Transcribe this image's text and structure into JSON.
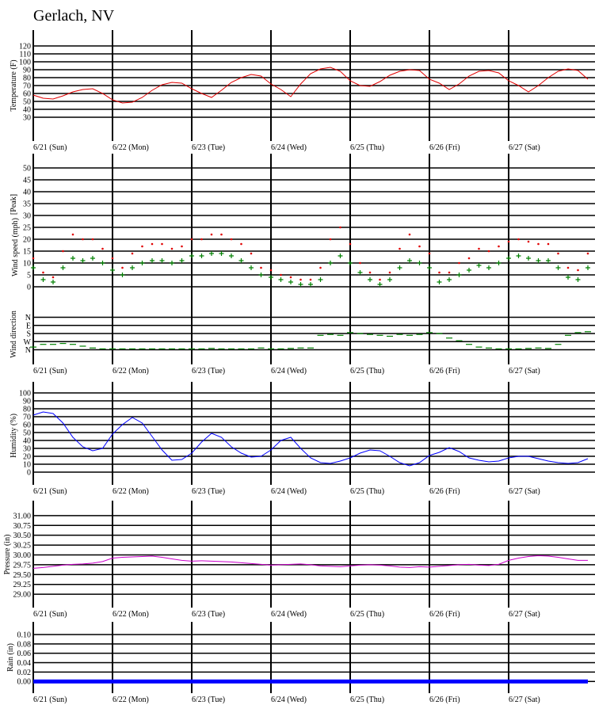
{
  "title": "Gerlach, NV",
  "chart_data": [
    {
      "type": "line",
      "y_label": "Temperature (F)",
      "color": "#e00000",
      "xlim": [
        0,
        168
      ],
      "ylim": [
        0,
        140
      ],
      "yticks": [
        30,
        40,
        50,
        60,
        70,
        80,
        90,
        100,
        110,
        120
      ],
      "xticks": [
        {
          "value": 0,
          "label": "6/21 (Sun)"
        },
        {
          "value": 24,
          "label": "6/22 (Mon)"
        },
        {
          "value": 48,
          "label": "6/23 (Tue)"
        },
        {
          "value": 72,
          "label": "6/24 (Wed)"
        },
        {
          "value": 96,
          "label": "6/25 (Thu)"
        },
        {
          "value": 120,
          "label": "6/26 (Fri)"
        },
        {
          "value": 144,
          "label": "6/27 (Sat)"
        }
      ],
      "x": [
        0,
        3,
        6,
        9,
        12,
        15,
        18,
        21,
        24,
        27,
        30,
        33,
        36,
        39,
        42,
        45,
        48,
        51,
        54,
        57,
        60,
        63,
        66,
        69,
        72,
        75,
        78,
        81,
        84,
        87,
        90,
        93,
        96,
        99,
        102,
        105,
        108,
        111,
        114,
        117,
        120,
        123,
        126,
        129,
        132,
        135,
        138,
        141,
        144,
        147,
        150,
        153,
        156,
        159,
        162,
        165,
        168
      ],
      "values": [
        58,
        54,
        53,
        57,
        62,
        65,
        66,
        60,
        52,
        48,
        49,
        55,
        64,
        71,
        74,
        73,
        66,
        60,
        55,
        64,
        74,
        80,
        84,
        82,
        72,
        65,
        56,
        72,
        85,
        91,
        93,
        88,
        76,
        70,
        69,
        75,
        83,
        88,
        90,
        89,
        78,
        73,
        65,
        72,
        82,
        88,
        89,
        86,
        76,
        70,
        62,
        70,
        80,
        88,
        91,
        89,
        78
      ]
    },
    {
      "type": "scatter",
      "y_label": "Wind speed (mph)",
      "xlim": [
        0,
        168
      ],
      "ylim": [
        -6,
        56
      ],
      "yticks": [
        0,
        5,
        10,
        15,
        20,
        25,
        30,
        35,
        40,
        45,
        50
      ],
      "x": [
        0,
        3,
        6,
        9,
        12,
        15,
        18,
        21,
        24,
        27,
        30,
        33,
        36,
        39,
        42,
        45,
        48,
        51,
        54,
        57,
        60,
        63,
        66,
        69,
        72,
        75,
        78,
        81,
        84,
        87,
        90,
        93,
        96,
        99,
        102,
        105,
        108,
        111,
        114,
        117,
        120,
        123,
        126,
        129,
        132,
        135,
        138,
        141,
        144,
        147,
        150,
        153,
        156,
        159,
        162,
        165,
        168
      ],
      "series": [
        {
          "name": "[Peak]",
          "color": "#e00000",
          "values": [
            12,
            6,
            4,
            15,
            22,
            20,
            20,
            16,
            12,
            8,
            14,
            17,
            18,
            18,
            16,
            17,
            20,
            20,
            22,
            22,
            20,
            18,
            14,
            8,
            7,
            5,
            4,
            3,
            3,
            8,
            20,
            25,
            18,
            10,
            6,
            3,
            6,
            16,
            22,
            17,
            14,
            6,
            6,
            10,
            12,
            16,
            15,
            17,
            19,
            20,
            19,
            18,
            18,
            14,
            8,
            7,
            14
          ]
        },
        {
          "color": "#008000",
          "values": [
            8,
            3,
            2,
            8,
            12,
            11,
            12,
            10,
            7,
            5,
            8,
            10,
            11,
            11,
            10,
            11,
            13,
            13,
            14,
            14,
            13,
            11,
            8,
            5,
            4,
            3,
            2,
            1,
            1,
            3,
            10,
            13,
            10,
            6,
            3,
            1,
            3,
            8,
            11,
            10,
            8,
            2,
            3,
            5,
            7,
            9,
            8,
            10,
            12,
            13,
            12,
            11,
            11,
            8,
            4,
            3,
            8
          ]
        }
      ]
    },
    {
      "type": "scatter",
      "y_label": "Wind direction",
      "color": "#008000",
      "xlim": [
        0,
        168
      ],
      "ylim": [
        522,
        -180
      ],
      "yticks": [
        {
          "value": 0,
          "label": "N"
        },
        {
          "value": 90,
          "label": "E"
        },
        {
          "value": 180,
          "label": "S"
        },
        {
          "value": 270,
          "label": "W"
        },
        {
          "value": 360,
          "label": "N"
        }
      ],
      "xticks": [
        {
          "value": 0,
          "label": "6/21 (Sun)"
        },
        {
          "value": 24,
          "label": "6/22 (Mon)"
        },
        {
          "value": 48,
          "label": "6/23 (Tue)"
        },
        {
          "value": 72,
          "label": "6/24 (Wed)"
        },
        {
          "value": 96,
          "label": "6/25 (Thu)"
        },
        {
          "value": 120,
          "label": "6/26 (Fri)"
        },
        {
          "value": 144,
          "label": "6/27 (Sat)"
        }
      ],
      "x": [
        0,
        3,
        6,
        9,
        12,
        15,
        18,
        21,
        24,
        27,
        30,
        33,
        36,
        39,
        42,
        45,
        48,
        51,
        54,
        57,
        60,
        63,
        66,
        69,
        72,
        75,
        78,
        81,
        84,
        87,
        90,
        93,
        96,
        99,
        102,
        105,
        108,
        111,
        114,
        117,
        120,
        123,
        126,
        129,
        132,
        135,
        138,
        141,
        144,
        147,
        150,
        153,
        156,
        159,
        162,
        165,
        168
      ],
      "values": [
        330,
        300,
        300,
        290,
        300,
        320,
        340,
        350,
        350,
        350,
        350,
        350,
        350,
        350,
        350,
        350,
        350,
        350,
        345,
        350,
        350,
        350,
        350,
        340,
        350,
        350,
        345,
        340,
        340,
        200,
        190,
        200,
        170,
        180,
        190,
        200,
        210,
        190,
        200,
        190,
        170,
        180,
        230,
        260,
        300,
        330,
        340,
        350,
        350,
        350,
        345,
        340,
        345,
        300,
        200,
        170,
        160
      ]
    },
    {
      "type": "line",
      "y_label": "Humidity (%)",
      "color": "#0000ff",
      "xlim": [
        0,
        168
      ],
      "ylim": [
        -16,
        114
      ],
      "yticks": [
        0,
        10,
        20,
        30,
        40,
        50,
        60,
        70,
        80,
        90,
        100
      ],
      "xticks": [
        {
          "value": 0,
          "label": "6/21 (Sun)"
        },
        {
          "value": 24,
          "label": "6/22 (Mon)"
        },
        {
          "value": 48,
          "label": "6/23 (Tue)"
        },
        {
          "value": 72,
          "label": "6/24 (Wed)"
        },
        {
          "value": 96,
          "label": "6/25 (Thu)"
        },
        {
          "value": 120,
          "label": "6/26 (Fri)"
        },
        {
          "value": 144,
          "label": "6/27 (Sat)"
        }
      ],
      "x": [
        0,
        3,
        6,
        9,
        12,
        15,
        18,
        21,
        24,
        27,
        30,
        33,
        36,
        39,
        42,
        45,
        48,
        51,
        54,
        57,
        60,
        63,
        66,
        69,
        72,
        75,
        78,
        81,
        84,
        87,
        90,
        93,
        96,
        99,
        102,
        105,
        108,
        111,
        114,
        117,
        120,
        123,
        126,
        129,
        132,
        135,
        138,
        141,
        144,
        147,
        150,
        153,
        156,
        159,
        162,
        165,
        168
      ],
      "values": [
        72,
        76,
        74,
        62,
        44,
        32,
        27,
        30,
        48,
        60,
        69,
        62,
        45,
        28,
        15,
        16,
        24,
        38,
        49,
        44,
        32,
        24,
        19,
        20,
        28,
        40,
        44,
        30,
        18,
        12,
        11,
        14,
        18,
        24,
        28,
        27,
        20,
        12,
        8,
        12,
        21,
        25,
        31,
        26,
        18,
        15,
        13,
        14,
        18,
        20,
        20,
        17,
        14,
        12,
        11,
        12,
        17
      ]
    },
    {
      "type": "line",
      "y_label": "Pressure (in)",
      "color": "#cc00cc",
      "xlim": [
        0,
        168
      ],
      "ylim": [
        28.66,
        31.38
      ],
      "yticks": [
        {
          "value": 29,
          "label": "29.00"
        },
        {
          "value": 29.25,
          "label": "29.25"
        },
        {
          "value": 29.5,
          "label": "29.50"
        },
        {
          "value": 29.75,
          "label": "29.75"
        },
        {
          "value": 30,
          "label": "30.00"
        },
        {
          "value": 30.25,
          "label": "30.25"
        },
        {
          "value": 30.5,
          "label": "30.50"
        },
        {
          "value": 30.75,
          "label": "30.75"
        },
        {
          "value": 31,
          "label": "31.00"
        }
      ],
      "xticks": [
        {
          "value": 0,
          "label": "6/21 (Sun)"
        },
        {
          "value": 24,
          "label": "6/22 (Mon)"
        },
        {
          "value": 48,
          "label": "6/23 (Tue)"
        },
        {
          "value": 72,
          "label": "6/24 (Wed)"
        },
        {
          "value": 96,
          "label": "6/25 (Thu)"
        },
        {
          "value": 120,
          "label": "6/26 (Fri)"
        },
        {
          "value": 144,
          "label": "6/27 (Sat)"
        }
      ],
      "x": [
        0,
        3,
        6,
        9,
        12,
        15,
        18,
        21,
        24,
        27,
        30,
        33,
        36,
        39,
        42,
        45,
        48,
        51,
        54,
        57,
        60,
        63,
        66,
        69,
        72,
        75,
        78,
        81,
        84,
        87,
        90,
        93,
        96,
        99,
        102,
        105,
        108,
        111,
        114,
        117,
        120,
        123,
        126,
        129,
        132,
        135,
        138,
        141,
        144,
        147,
        150,
        153,
        156,
        159,
        162,
        165,
        168
      ],
      "values": [
        29.66,
        29.68,
        29.71,
        29.74,
        29.76,
        29.77,
        29.79,
        29.83,
        29.92,
        29.94,
        29.95,
        29.96,
        29.97,
        29.94,
        29.9,
        29.86,
        29.84,
        29.85,
        29.84,
        29.83,
        29.82,
        29.8,
        29.78,
        29.76,
        29.74,
        29.75,
        29.76,
        29.77,
        29.75,
        29.72,
        29.71,
        29.7,
        29.72,
        29.74,
        29.75,
        29.74,
        29.72,
        29.69,
        29.68,
        29.7,
        29.69,
        29.71,
        29.73,
        29.75,
        29.76,
        29.74,
        29.73,
        29.76,
        29.86,
        29.92,
        29.96,
        29.98,
        29.97,
        29.94,
        29.9,
        29.86,
        29.86
      ]
    },
    {
      "type": "line",
      "y_label": "Rain (in)",
      "color": "#0000ff",
      "line_width": 5,
      "xlim": [
        0,
        168
      ],
      "ylim": [
        -0.025,
        0.127
      ],
      "yticks": [
        {
          "value": 0,
          "label": "0.00"
        },
        {
          "value": 0.02,
          "label": "0.02"
        },
        {
          "value": 0.04,
          "label": "0.04"
        },
        {
          "value": 0.06,
          "label": "0.06"
        },
        {
          "value": 0.08,
          "label": "0.08"
        },
        {
          "value": 0.1,
          "label": "0.10"
        }
      ],
      "xticks": [
        {
          "value": 0,
          "label": "6/21 (Sun)"
        },
        {
          "value": 24,
          "label": "6/22 (Mon)"
        },
        {
          "value": 48,
          "label": "6/23 (Tue)"
        },
        {
          "value": 72,
          "label": "6/24 (Wed)"
        },
        {
          "value": 96,
          "label": "6/25 (Thu)"
        },
        {
          "value": 120,
          "label": "6/26 (Fri)"
        },
        {
          "value": 144,
          "label": "6/27 (Sat)"
        }
      ],
      "x": [
        0,
        3,
        6,
        9,
        12,
        15,
        18,
        21,
        24,
        27,
        30,
        33,
        36,
        39,
        42,
        45,
        48,
        51,
        54,
        57,
        60,
        63,
        66,
        69,
        72,
        75,
        78,
        81,
        84,
        87,
        90,
        93,
        96,
        99,
        102,
        105,
        108,
        111,
        114,
        117,
        120,
        123,
        126,
        129,
        132,
        135,
        138,
        141,
        144,
        147,
        150,
        153,
        156,
        159,
        162,
        165,
        168
      ],
      "values": [
        0,
        0,
        0,
        0,
        0,
        0,
        0,
        0,
        0,
        0,
        0,
        0,
        0,
        0,
        0,
        0,
        0,
        0,
        0,
        0,
        0,
        0,
        0,
        0,
        0,
        0,
        0,
        0,
        0,
        0,
        0,
        0,
        0,
        0,
        0,
        0,
        0,
        0,
        0,
        0,
        0,
        0,
        0,
        0,
        0,
        0,
        0,
        0,
        0,
        0,
        0,
        0,
        0,
        0,
        0,
        0,
        0
      ]
    }
  ]
}
